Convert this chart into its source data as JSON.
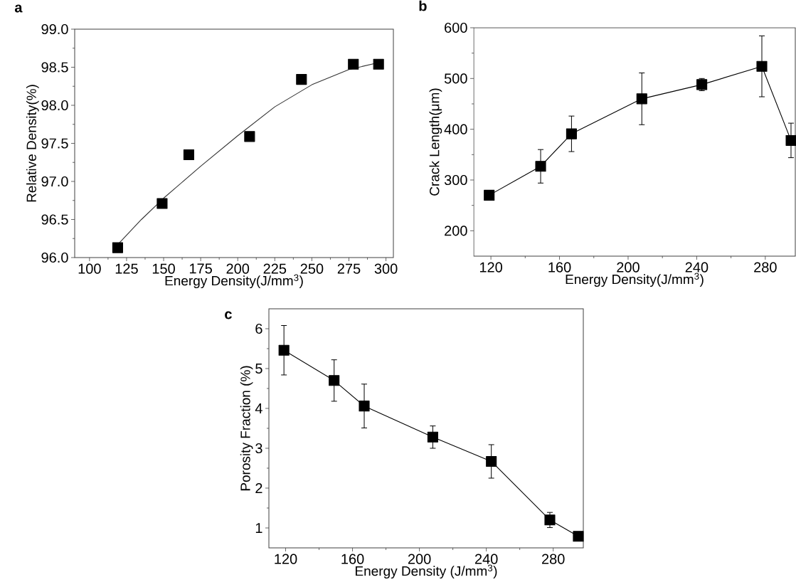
{
  "chart_data": [
    {
      "type": "scatter",
      "title": "a",
      "xlabel": "Energy Density(J/mm$^{3}$)",
      "ylabel": "Relative Density(%)",
      "x": [
        119,
        149,
        167,
        208,
        243,
        278,
        295
      ],
      "xlim": [
        90,
        305
      ],
      "ylim": [
        96,
        99
      ],
      "xticks": [
        100,
        125,
        150,
        175,
        200,
        225,
        250,
        275,
        300
      ],
      "yticks": [
        {
          "value": 96,
          "label": "96.0"
        },
        {
          "value": 96.5,
          "label": "96.5"
        },
        {
          "value": 97,
          "label": "97.0"
        },
        {
          "value": 97.5,
          "label": "97.5"
        },
        {
          "value": 98,
          "label": "98.0"
        },
        {
          "value": 98.5,
          "label": "98.5"
        },
        {
          "value": 99,
          "label": "99.0"
        }
      ],
      "marker": "square",
      "series": [
        {
          "color": "#000000",
          "values": [
            96.13,
            96.71,
            97.35,
            97.59,
            98.34,
            98.54,
            98.54
          ]
        },
        {
          "type": "line",
          "marker": "none",
          "color": "#333333",
          "x": [
            120,
            135,
            150,
            175,
            200,
            225,
            250,
            275,
            295
          ],
          "values": [
            96.19,
            96.5,
            96.78,
            97.2,
            97.6,
            97.98,
            98.27,
            98.47,
            98.56
          ]
        }
      ]
    },
    {
      "type": "line",
      "title": "b",
      "xlabel": "Energy Density(J/mm$^{3}$)",
      "ylabel": "Crack Length(μm)",
      "x": [
        119,
        149,
        167,
        208,
        243,
        278,
        295
      ],
      "xlim": [
        110,
        297.5
      ],
      "ylim": [
        150,
        600
      ],
      "xticks": [
        120,
        160,
        200,
        240,
        280
      ],
      "yticks": [
        200,
        300,
        400,
        500,
        600
      ],
      "marker": "square",
      "line_style": "solid",
      "series": [
        {
          "color": "#000000",
          "values": [
            270,
            327,
            391,
            460,
            488,
            524,
            378
          ],
          "errors": [
            8,
            33,
            35,
            51,
            12,
            60,
            34
          ]
        }
      ]
    },
    {
      "type": "line",
      "title": "c",
      "xlabel": "Energy Density (J/mm$^{3}$)",
      "ylabel": "Porosity Fraction (%)",
      "x": [
        119,
        149,
        167,
        208,
        243,
        278,
        295
      ],
      "xlim": [
        110,
        298
      ],
      "ylim": [
        0.5,
        6.5
      ],
      "xticks": [
        120,
        160,
        200,
        240,
        280
      ],
      "yticks": [
        1,
        2,
        3,
        4,
        5,
        6
      ],
      "marker": "square",
      "line_style": "solid",
      "series": [
        {
          "color": "#000000",
          "values": [
            5.46,
            4.7,
            4.06,
            3.28,
            2.67,
            1.2,
            0.79
          ],
          "errors": [
            0.62,
            0.52,
            0.55,
            0.28,
            0.42,
            0.19,
            0.1
          ]
        }
      ]
    }
  ]
}
